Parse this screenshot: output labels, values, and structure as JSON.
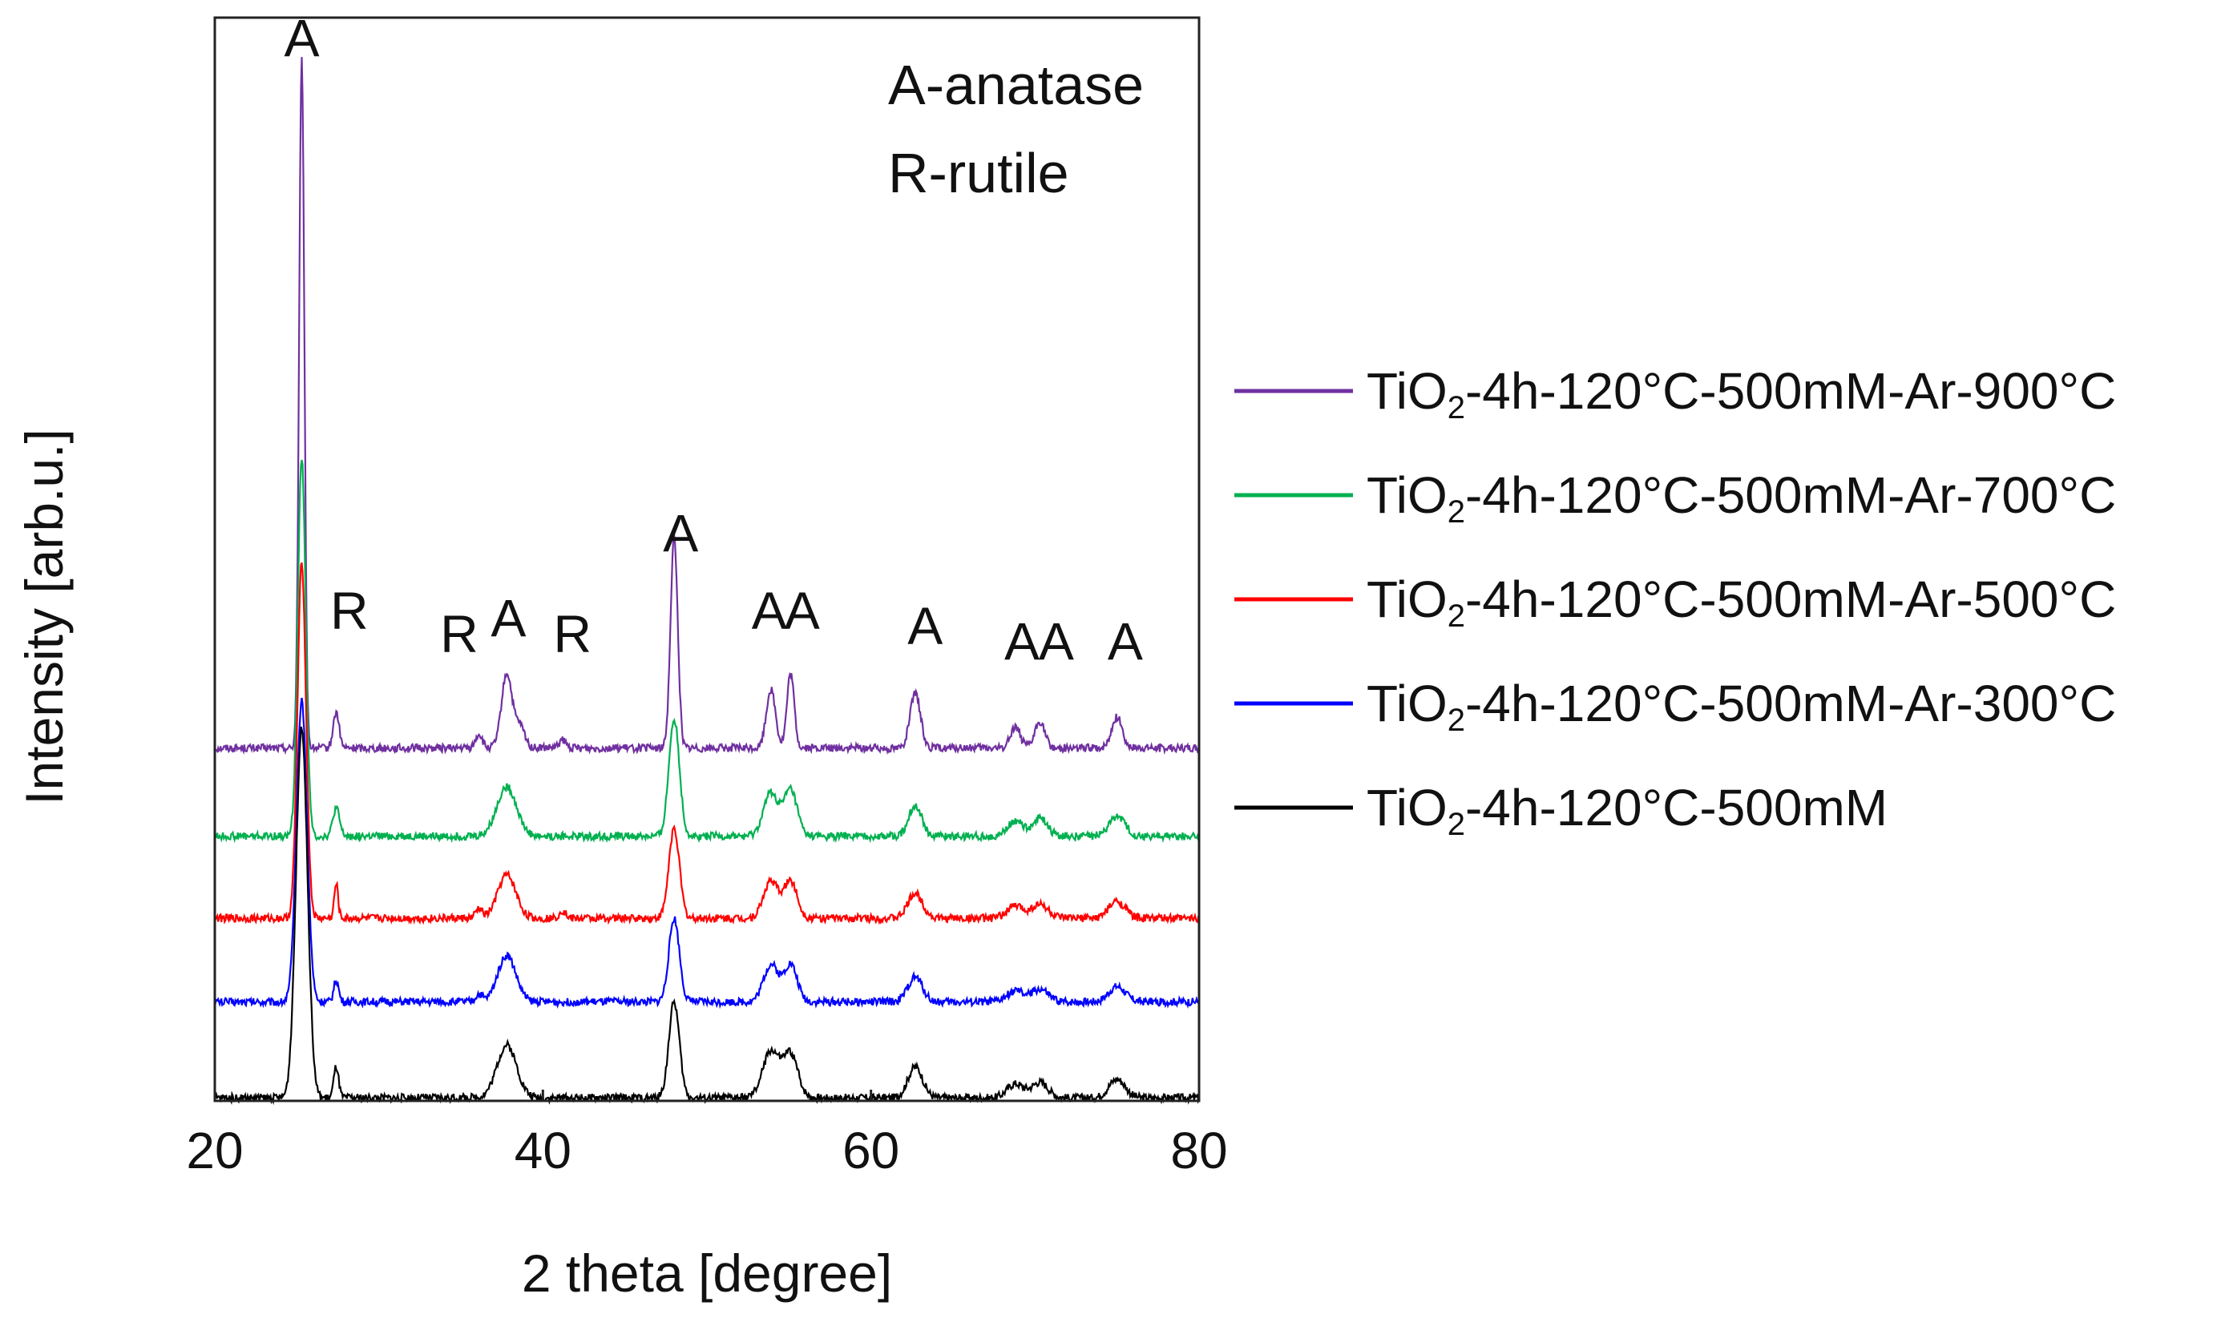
{
  "chart_data": {
    "type": "line",
    "title": "",
    "xlabel": "2 theta [degree]",
    "ylabel": "Intensity [arb.u.]",
    "xlim": [
      20,
      80
    ],
    "ylim": [
      0,
      7
    ],
    "xticks": [
      20,
      40,
      60,
      80
    ],
    "yticks": [],
    "grid": false,
    "legend_position": "right",
    "key": [
      "A-anatase",
      "R-rutile"
    ],
    "legend": [
      {
        "formula": "TiO",
        "sub": "2",
        "suffix": "-4h-120°C-500mM-Ar-900°C",
        "color": "#7030a0"
      },
      {
        "formula": "TiO",
        "sub": "2",
        "suffix": "-4h-120°C-500mM-Ar-700°C",
        "color": "#00b050"
      },
      {
        "formula": "TiO",
        "sub": "2",
        "suffix": "-4h-120°C-500mM-Ar-500°C",
        "color": "#ff0000"
      },
      {
        "formula": "TiO",
        "sub": "2",
        "suffix": "-4h-120°C-500mM-Ar-300°C",
        "color": "#0000ff"
      },
      {
        "formula": "TiO",
        "sub": "2",
        "suffix": "-4h-120°C-500mM",
        "color": "#000000"
      }
    ],
    "series": [
      {
        "name": "TiO2-4h-120°C-500mM-Ar-900°C",
        "color": "#7030a0",
        "baseline": 2.28,
        "peaks": [
          [
            25.3,
            4.45,
            0.16
          ],
          [
            27.4,
            0.23,
            0.18
          ],
          [
            36.1,
            0.09,
            0.2
          ],
          [
            37.8,
            0.48,
            0.32
          ],
          [
            38.6,
            0.14,
            0.3
          ],
          [
            41.2,
            0.05,
            0.2
          ],
          [
            48.0,
            1.36,
            0.22
          ],
          [
            53.9,
            0.38,
            0.28
          ],
          [
            55.1,
            0.48,
            0.22
          ],
          [
            62.7,
            0.35,
            0.32
          ],
          [
            68.8,
            0.14,
            0.3
          ],
          [
            70.3,
            0.17,
            0.3
          ],
          [
            75.0,
            0.2,
            0.32
          ]
        ]
      },
      {
        "name": "TiO2-4h-120°C-500mM-Ar-700°C",
        "color": "#00b050",
        "baseline": 1.71,
        "peaks": [
          [
            25.3,
            2.45,
            0.24
          ],
          [
            27.4,
            0.18,
            0.2
          ],
          [
            37.8,
            0.32,
            0.6
          ],
          [
            48.0,
            0.76,
            0.32
          ],
          [
            53.9,
            0.28,
            0.45
          ],
          [
            55.1,
            0.3,
            0.4
          ],
          [
            62.7,
            0.2,
            0.4
          ],
          [
            68.8,
            0.1,
            0.45
          ],
          [
            70.3,
            0.12,
            0.45
          ],
          [
            75.0,
            0.13,
            0.5
          ]
        ]
      },
      {
        "name": "TiO2-4h-120°C-500mM-Ar-500°C",
        "color": "#ff0000",
        "baseline": 1.18,
        "peaks": [
          [
            25.3,
            2.3,
            0.26
          ],
          [
            27.4,
            0.22,
            0.12
          ],
          [
            36.1,
            0.06,
            0.2
          ],
          [
            37.8,
            0.28,
            0.55
          ],
          [
            41.2,
            0.05,
            0.2
          ],
          [
            48.0,
            0.58,
            0.32
          ],
          [
            53.9,
            0.24,
            0.45
          ],
          [
            55.1,
            0.24,
            0.4
          ],
          [
            62.7,
            0.16,
            0.45
          ],
          [
            68.8,
            0.08,
            0.5
          ],
          [
            70.3,
            0.09,
            0.5
          ],
          [
            75.0,
            0.11,
            0.5
          ]
        ]
      },
      {
        "name": "TiO2-4h-120°C-500mM-Ar-300°C",
        "color": "#0000ff",
        "baseline": 0.64,
        "peaks": [
          [
            25.3,
            1.95,
            0.32
          ],
          [
            27.4,
            0.14,
            0.15
          ],
          [
            36.1,
            0.05,
            0.2
          ],
          [
            37.8,
            0.3,
            0.55
          ],
          [
            48.0,
            0.54,
            0.32
          ],
          [
            53.9,
            0.24,
            0.45
          ],
          [
            55.1,
            0.24,
            0.4
          ],
          [
            62.7,
            0.16,
            0.45
          ],
          [
            68.8,
            0.07,
            0.5
          ],
          [
            70.3,
            0.08,
            0.5
          ],
          [
            75.0,
            0.1,
            0.5
          ]
        ]
      },
      {
        "name": "TiO2-4h-120°C-500mM",
        "color": "#000000",
        "baseline": 0.02,
        "peaks": [
          [
            25.3,
            2.4,
            0.35
          ],
          [
            27.4,
            0.2,
            0.15
          ],
          [
            37.8,
            0.34,
            0.6
          ],
          [
            48.0,
            0.62,
            0.32
          ],
          [
            53.9,
            0.3,
            0.5
          ],
          [
            55.1,
            0.28,
            0.45
          ],
          [
            62.7,
            0.2,
            0.45
          ],
          [
            68.8,
            0.09,
            0.5
          ],
          [
            70.3,
            0.1,
            0.5
          ],
          [
            75.0,
            0.12,
            0.5
          ]
        ]
      }
    ],
    "annotations": [
      {
        "text": "A",
        "x": 25.3,
        "y": 6.75
      },
      {
        "text": "R",
        "x": 28.2,
        "y": 3.05
      },
      {
        "text": "R",
        "x": 34.9,
        "y": 2.9
      },
      {
        "text": "A",
        "x": 37.9,
        "y": 3.0
      },
      {
        "text": "R",
        "x": 41.8,
        "y": 2.9
      },
      {
        "text": "A",
        "x": 48.4,
        "y": 3.55
      },
      {
        "text": "A",
        "x": 53.8,
        "y": 3.05
      },
      {
        "text": "A",
        "x": 55.8,
        "y": 3.05
      },
      {
        "text": "A",
        "x": 63.3,
        "y": 2.95
      },
      {
        "text": "A",
        "x": 69.2,
        "y": 2.85
      },
      {
        "text": "A",
        "x": 71.3,
        "y": 2.85
      },
      {
        "text": "A",
        "x": 75.5,
        "y": 2.85
      }
    ]
  }
}
